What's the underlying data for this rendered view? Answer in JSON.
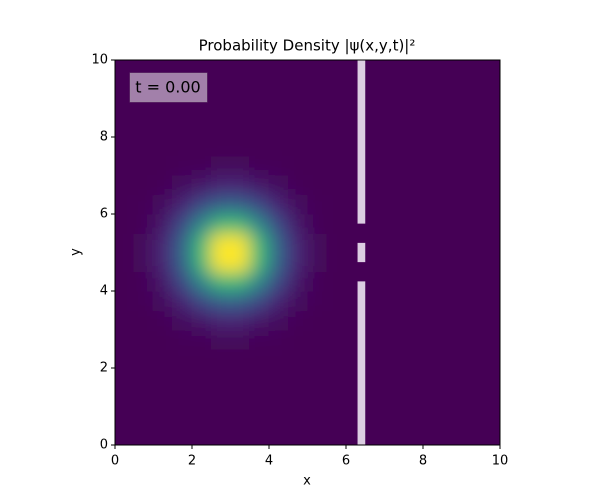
{
  "chart_data": {
    "type": "heatmap",
    "title": "Probability Density |ψ(x,y,t)|²",
    "xlabel": "x",
    "ylabel": "y",
    "annotation": "t = 0.00",
    "colormap": "viridis",
    "xlim": [
      0,
      10
    ],
    "ylim": [
      0,
      10
    ],
    "xticks": [
      0,
      2,
      4,
      6,
      8,
      10
    ],
    "yticks": [
      0,
      2,
      4,
      6,
      8,
      10
    ],
    "x": [
      0.25,
      0.75,
      1.25,
      1.75,
      2.25,
      2.75,
      3.25,
      3.75,
      4.25,
      4.75,
      5.25,
      5.75,
      6.25,
      6.75,
      7.25,
      7.75,
      8.25,
      8.75,
      9.25,
      9.75
    ],
    "y": [
      0.25,
      0.75,
      1.25,
      1.75,
      2.25,
      2.75,
      3.25,
      3.75,
      4.25,
      4.75,
      5.25,
      5.75,
      6.25,
      6.75,
      7.25,
      7.75,
      8.25,
      8.75,
      9.25,
      9.75
    ],
    "z": [
      [
        0,
        0,
        0,
        0,
        0,
        0,
        0,
        0,
        0,
        0,
        0,
        0,
        0,
        0,
        0,
        0,
        0,
        0,
        0,
        0
      ],
      [
        0,
        0,
        0,
        0,
        0,
        0,
        0,
        0,
        0,
        0,
        0,
        0,
        0,
        0,
        0,
        0,
        0,
        0,
        0,
        0
      ],
      [
        0,
        0,
        0,
        0,
        0,
        0,
        0,
        0,
        0,
        0,
        0,
        0,
        0,
        0,
        0,
        0,
        0,
        0,
        0,
        0
      ],
      [
        0,
        0,
        0,
        0,
        0,
        0,
        0,
        0,
        0,
        0,
        0,
        0,
        0,
        0,
        0,
        0,
        0,
        0,
        0,
        0
      ],
      [
        0,
        0,
        0,
        0,
        0,
        0,
        0,
        0,
        0,
        0,
        0,
        0,
        0,
        0,
        0,
        0,
        0,
        0,
        0,
        0
      ],
      [
        0,
        0,
        0,
        0.01,
        0.01,
        0.02,
        0.02,
        0.01,
        0.01,
        0,
        0,
        0,
        0,
        0,
        0,
        0,
        0,
        0,
        0,
        0
      ],
      [
        0,
        0,
        0.01,
        0.03,
        0.06,
        0.09,
        0.09,
        0.06,
        0.03,
        0.01,
        0,
        0,
        0,
        0,
        0,
        0,
        0,
        0,
        0,
        0
      ],
      [
        0,
        0.01,
        0.03,
        0.09,
        0.19,
        0.28,
        0.28,
        0.19,
        0.09,
        0.03,
        0.01,
        0,
        0,
        0,
        0,
        0,
        0,
        0,
        0,
        0
      ],
      [
        0,
        0.01,
        0.06,
        0.19,
        0.42,
        0.61,
        0.61,
        0.42,
        0.19,
        0.06,
        0.01,
        0,
        0,
        0,
        0,
        0,
        0,
        0,
        0,
        0
      ],
      [
        0,
        0.02,
        0.09,
        0.28,
        0.61,
        0.91,
        0.91,
        0.61,
        0.28,
        0.09,
        0.02,
        0,
        0,
        0,
        0,
        0,
        0,
        0,
        0,
        0
      ],
      [
        0,
        0.02,
        0.09,
        0.28,
        0.61,
        0.91,
        0.91,
        0.61,
        0.28,
        0.09,
        0.02,
        0,
        0,
        0,
        0,
        0,
        0,
        0,
        0,
        0
      ],
      [
        0,
        0.01,
        0.06,
        0.19,
        0.42,
        0.61,
        0.61,
        0.42,
        0.19,
        0.06,
        0.01,
        0,
        0,
        0,
        0,
        0,
        0,
        0,
        0,
        0
      ],
      [
        0,
        0.01,
        0.03,
        0.09,
        0.19,
        0.28,
        0.28,
        0.19,
        0.09,
        0.03,
        0.01,
        0,
        0,
        0,
        0,
        0,
        0,
        0,
        0,
        0
      ],
      [
        0,
        0,
        0.01,
        0.03,
        0.06,
        0.09,
        0.09,
        0.06,
        0.03,
        0.01,
        0,
        0,
        0,
        0,
        0,
        0,
        0,
        0,
        0,
        0
      ],
      [
        0,
        0,
        0,
        0.01,
        0.01,
        0.02,
        0.02,
        0.01,
        0.01,
        0,
        0,
        0,
        0,
        0,
        0,
        0,
        0,
        0,
        0,
        0
      ],
      [
        0,
        0,
        0,
        0,
        0,
        0,
        0,
        0,
        0,
        0,
        0,
        0,
        0,
        0,
        0,
        0,
        0,
        0,
        0,
        0
      ],
      [
        0,
        0,
        0,
        0,
        0,
        0,
        0,
        0,
        0,
        0,
        0,
        0,
        0,
        0,
        0,
        0,
        0,
        0,
        0,
        0
      ],
      [
        0,
        0,
        0,
        0,
        0,
        0,
        0,
        0,
        0,
        0,
        0,
        0,
        0,
        0,
        0,
        0,
        0,
        0,
        0,
        0
      ],
      [
        0,
        0,
        0,
        0,
        0,
        0,
        0,
        0,
        0,
        0,
        0,
        0,
        0,
        0,
        0,
        0,
        0,
        0,
        0,
        0
      ],
      [
        0,
        0,
        0,
        0,
        0,
        0,
        0,
        0,
        0,
        0,
        0,
        0,
        0,
        0,
        0,
        0,
        0,
        0,
        0,
        0
      ]
    ],
    "barrier": {
      "color": "#dccde2",
      "x": [
        6.3,
        6.5
      ],
      "segments": [
        [
          0,
          4.25
        ],
        [
          4.75,
          5.25
        ],
        [
          5.75,
          10
        ]
      ]
    }
  }
}
